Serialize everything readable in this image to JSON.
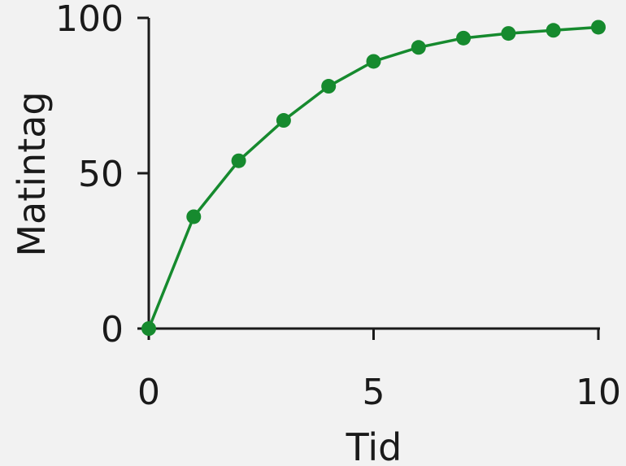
{
  "chart_data": {
    "type": "line",
    "title": "",
    "xlabel": "Tid",
    "ylabel": "Matintag",
    "xlim": [
      0,
      10
    ],
    "ylim": [
      0,
      100
    ],
    "xticks": [
      0,
      5,
      10
    ],
    "yticks": [
      0,
      50,
      100
    ],
    "grid": false,
    "color": "#168a2e",
    "series": [
      {
        "x": [
          0,
          1,
          2,
          3,
          4,
          5,
          6,
          7,
          8,
          9,
          10
        ],
        "values": [
          0,
          36,
          54,
          67,
          78,
          86,
          90.5,
          93.5,
          95,
          96,
          97
        ]
      }
    ]
  }
}
